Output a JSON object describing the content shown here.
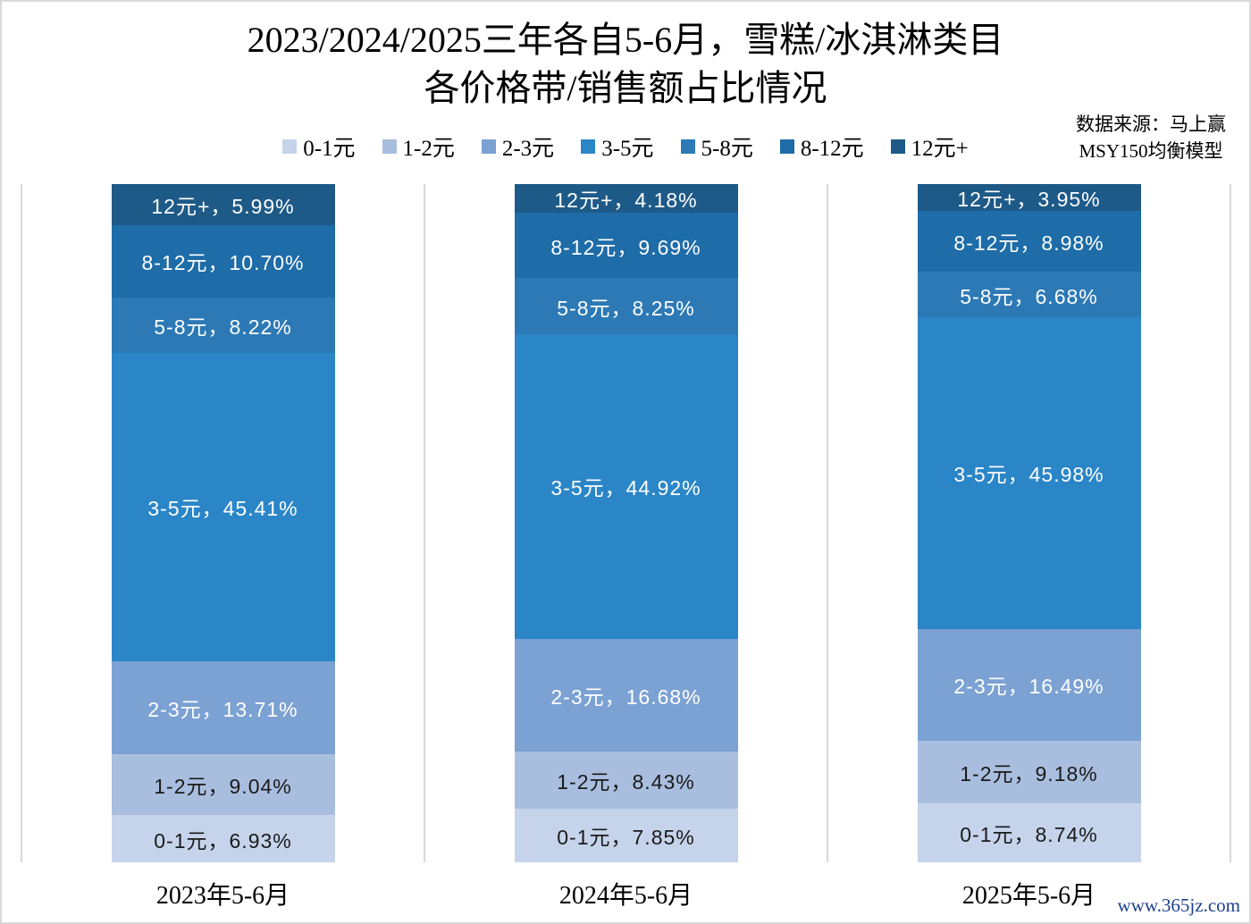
{
  "title": {
    "line1": "2023/2024/2025三年各自5-6月，雪糕/冰淇淋类目",
    "line2": "各价格带/销售额占比情况"
  },
  "source": {
    "line1": "数据来源：马上赢",
    "line2": "MSY150均衡模型"
  },
  "watermark": "www.365jz.com",
  "chart_data": {
    "type": "bar",
    "stacked": true,
    "unit": "%",
    "ylim": [
      0,
      100
    ],
    "grid": "vertical-category-separators",
    "legend_position": "top",
    "gridline_color": "#d9d9d9",
    "categories": [
      "2023年5-6月",
      "2024年5-6月",
      "2025年5-6月"
    ],
    "series": [
      {
        "name": "0-1元",
        "color": "#c5d4eb",
        "text_color": "#1a1a1a",
        "values": [
          6.93,
          7.85,
          8.74
        ],
        "labels": [
          "0-1元，6.93%",
          "0-1元，7.85%",
          "0-1元，8.74%"
        ]
      },
      {
        "name": "1-2元",
        "color": "#a9bedf",
        "text_color": "#1a1a1a",
        "values": [
          9.04,
          8.43,
          9.18
        ],
        "labels": [
          "1-2元，9.04%",
          "1-2元，8.43%",
          "1-2元，9.18%"
        ]
      },
      {
        "name": "2-3元",
        "color": "#7ca1d3",
        "text_color": "#ffffff",
        "values": [
          13.71,
          16.68,
          16.49
        ],
        "labels": [
          "2-3元，13.71%",
          "2-3元，16.68%",
          "2-3元，16.49%"
        ]
      },
      {
        "name": "3-5元",
        "color": "#2b86c8",
        "text_color": "#ffffff",
        "values": [
          45.41,
          44.92,
          45.98
        ],
        "labels": [
          "3-5元，45.41%",
          "3-5元，44.92%",
          "3-5元，45.98%"
        ]
      },
      {
        "name": "5-8元",
        "color": "#2c79b6",
        "text_color": "#ffffff",
        "values": [
          8.22,
          8.25,
          6.68
        ],
        "labels": [
          "5-8元，8.22%",
          "5-8元，8.25%",
          "5-8元，6.68%"
        ]
      },
      {
        "name": "8-12元",
        "color": "#1e6ca8",
        "text_color": "#ffffff",
        "values": [
          10.7,
          9.69,
          8.98
        ],
        "labels": [
          "8-12元，10.70%",
          "8-12元，9.69%",
          "8-12元，8.98%"
        ]
      },
      {
        "name": "12元+",
        "color": "#1e5a88",
        "text_color": "#ffffff",
        "values": [
          5.99,
          4.18,
          3.95
        ],
        "labels": [
          "12元+，5.99%",
          "12元+，4.18%",
          "12元+，3.95%"
        ]
      }
    ]
  }
}
